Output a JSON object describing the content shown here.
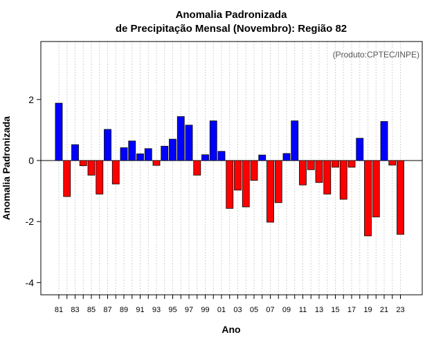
{
  "chart_data": {
    "type": "bar",
    "title": [
      "Anomalia Padronizada",
      "de Precipitação Mensal (Novembro): Região 82"
    ],
    "xlabel": "Ano",
    "ylabel": "Anomalia Padronizada",
    "annotation": "(Produto:CPTEC/INPE)",
    "ylim": [
      -4.4,
      3.9
    ],
    "yticks": [
      -4,
      -2,
      0,
      2
    ],
    "ytick_labels": [
      "-4",
      "-2",
      "0",
      "2"
    ],
    "xtick_labels": [
      "81",
      "83",
      "85",
      "87",
      "89",
      "91",
      "93",
      "95",
      "97",
      "99",
      "01",
      "03",
      "05",
      "07",
      "09",
      "11",
      "13",
      "15",
      "17",
      "19",
      "21",
      "23"
    ],
    "grid": "vertical dotted",
    "colors": {
      "positive": "#0000ff",
      "negative": "#ff0000"
    },
    "categories": [
      "1981",
      "1982",
      "1983",
      "1984",
      "1985",
      "1986",
      "1987",
      "1988",
      "1989",
      "1990",
      "1991",
      "1992",
      "1993",
      "1994",
      "1995",
      "1996",
      "1997",
      "1998",
      "1999",
      "2000",
      "2001",
      "2002",
      "2003",
      "2004",
      "2005",
      "2006",
      "2007",
      "2008",
      "2009",
      "2010",
      "2011",
      "2012",
      "2013",
      "2014",
      "2015",
      "2016",
      "2017",
      "2018",
      "2019",
      "2020",
      "2021",
      "2022",
      "2023"
    ],
    "values": [
      1.88,
      -1.18,
      0.52,
      -0.17,
      -0.48,
      -1.1,
      1.02,
      -0.77,
      0.42,
      0.64,
      0.22,
      0.39,
      -0.16,
      0.47,
      0.7,
      1.44,
      1.16,
      -0.48,
      0.19,
      1.3,
      0.3,
      -1.57,
      -0.97,
      -1.52,
      -0.65,
      0.18,
      -2.02,
      -1.38,
      0.23,
      1.3,
      -0.8,
      -0.3,
      -0.72,
      -1.1,
      -0.22,
      -1.27,
      -0.22,
      0.73,
      -2.47,
      -1.85,
      1.28,
      -0.15,
      -2.42
    ]
  }
}
